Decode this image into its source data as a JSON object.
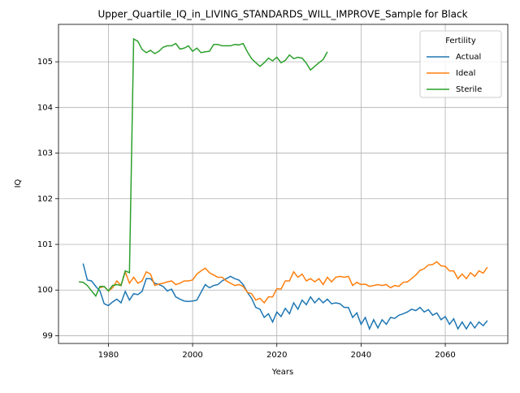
{
  "chart_data": {
    "type": "line",
    "title": "Upper_Quartile_IQ_in_LIVING_STANDARDS_WILL_IMPROVE_Sample for Black",
    "xlabel": "Years",
    "ylabel": "IQ",
    "legend_title": "Fertility",
    "legend": "upper right",
    "grid": true,
    "xlim": [
      1968.15,
      2074.85
    ],
    "ylim": [
      98.83,
      105.82
    ],
    "xticks": [
      1980,
      2000,
      2020,
      2040,
      2060
    ],
    "yticks": [
      99,
      100,
      101,
      102,
      103,
      104,
      105
    ],
    "x": [
      1973,
      1974,
      1975,
      1976,
      1977,
      1978,
      1979,
      1980,
      1981,
      1982,
      1983,
      1984,
      1985,
      1986,
      1987,
      1988,
      1989,
      1990,
      1991,
      1992,
      1993,
      1994,
      1995,
      1996,
      1997,
      1998,
      1999,
      2000,
      2001,
      2002,
      2003,
      2004,
      2005,
      2006,
      2007,
      2008,
      2009,
      2010,
      2011,
      2012,
      2013,
      2014,
      2015,
      2016,
      2017,
      2018,
      2019,
      2020,
      2021,
      2022,
      2023,
      2024,
      2025,
      2026,
      2027,
      2028,
      2029,
      2030,
      2031,
      2032,
      2033,
      2034,
      2035,
      2036,
      2037,
      2038,
      2039,
      2040,
      2041,
      2042,
      2043,
      2044,
      2045,
      2046,
      2047,
      2048,
      2049,
      2050,
      2051,
      2052,
      2053,
      2054,
      2055,
      2056,
      2057,
      2058,
      2059,
      2060,
      2061,
      2062,
      2063,
      2064,
      2065,
      2066,
      2067,
      2068,
      2069,
      2070
    ],
    "series": [
      {
        "name": "Actual",
        "color": "#1f77b4",
        "values": [
          null,
          100.58,
          100.22,
          100.2,
          100.08,
          99.98,
          99.7,
          99.66,
          99.74,
          99.8,
          99.72,
          99.97,
          99.78,
          99.92,
          99.9,
          99.97,
          100.25,
          100.25,
          100.15,
          100.12,
          100.08,
          99.98,
          100.02,
          99.85,
          99.8,
          99.76,
          99.75,
          99.76,
          99.78,
          99.95,
          100.12,
          100.05,
          100.1,
          100.12,
          100.2,
          100.25,
          100.3,
          100.25,
          100.22,
          100.12,
          99.95,
          99.82,
          99.62,
          99.58,
          99.4,
          99.48,
          99.3,
          99.52,
          99.42,
          99.6,
          99.48,
          99.72,
          99.58,
          99.78,
          99.68,
          99.85,
          99.72,
          99.82,
          99.72,
          99.8,
          99.7,
          99.72,
          99.7,
          99.62,
          99.62,
          99.4,
          99.5,
          99.25,
          99.4,
          99.15,
          99.35,
          99.17,
          99.35,
          99.25,
          99.4,
          99.38,
          99.45,
          99.48,
          99.52,
          99.58,
          99.55,
          99.62,
          99.52,
          99.57,
          99.45,
          99.5,
          99.35,
          99.42,
          99.25,
          99.37,
          99.15,
          99.3,
          99.15,
          99.3,
          99.17,
          99.3,
          99.22,
          99.33
        ]
      },
      {
        "name": "Ideal",
        "color": "#ff7f0e",
        "values": [
          null,
          null,
          null,
          null,
          null,
          100.05,
          100.08,
          99.98,
          100.05,
          100.2,
          100.1,
          100.4,
          100.15,
          100.28,
          100.15,
          100.2,
          100.4,
          100.35,
          100.1,
          100.13,
          100.15,
          100.18,
          100.2,
          100.12,
          100.15,
          100.2,
          100.2,
          100.22,
          100.35,
          100.42,
          100.48,
          100.38,
          100.33,
          100.28,
          100.28,
          100.2,
          100.15,
          100.1,
          100.12,
          100.08,
          99.95,
          99.92,
          99.78,
          99.82,
          99.72,
          99.85,
          99.85,
          100.03,
          100.02,
          100.2,
          100.2,
          100.4,
          100.28,
          100.35,
          100.2,
          100.25,
          100.18,
          100.25,
          100.12,
          100.28,
          100.18,
          100.28,
          100.3,
          100.28,
          100.3,
          100.1,
          100.17,
          100.12,
          100.13,
          100.08,
          100.1,
          100.12,
          100.1,
          100.12,
          100.05,
          100.1,
          100.08,
          100.17,
          100.18,
          100.25,
          100.33,
          100.43,
          100.47,
          100.55,
          100.56,
          100.62,
          100.53,
          100.52,
          100.42,
          100.42,
          100.25,
          100.35,
          100.25,
          100.38,
          100.3,
          100.42,
          100.37,
          100.5
        ]
      },
      {
        "name": "Sterile",
        "color": "#2ca02c",
        "values": [
          100.18,
          100.17,
          100.1,
          99.98,
          99.87,
          100.08,
          100.08,
          99.98,
          100.1,
          100.12,
          100.1,
          100.42,
          100.38,
          105.5,
          105.45,
          105.27,
          105.2,
          105.25,
          105.18,
          105.23,
          105.32,
          105.35,
          105.35,
          105.4,
          105.28,
          105.3,
          105.35,
          105.23,
          105.3,
          105.2,
          105.22,
          105.23,
          105.38,
          105.38,
          105.35,
          105.35,
          105.35,
          105.38,
          105.37,
          105.4,
          105.22,
          105.07,
          104.98,
          104.9,
          104.98,
          105.08,
          105.02,
          105.1,
          104.98,
          105.03,
          105.15,
          105.07,
          105.1,
          105.08,
          104.97,
          104.82,
          104.9,
          104.98,
          105.05,
          105.22,
          null,
          null,
          null,
          null,
          null,
          null,
          null,
          null,
          null,
          null,
          null,
          null,
          null,
          null,
          null,
          null,
          null,
          null,
          null,
          null,
          null,
          null,
          null,
          null,
          null,
          null,
          null,
          null,
          null,
          null,
          null,
          null,
          null,
          null,
          null,
          null,
          null,
          null
        ]
      }
    ]
  }
}
